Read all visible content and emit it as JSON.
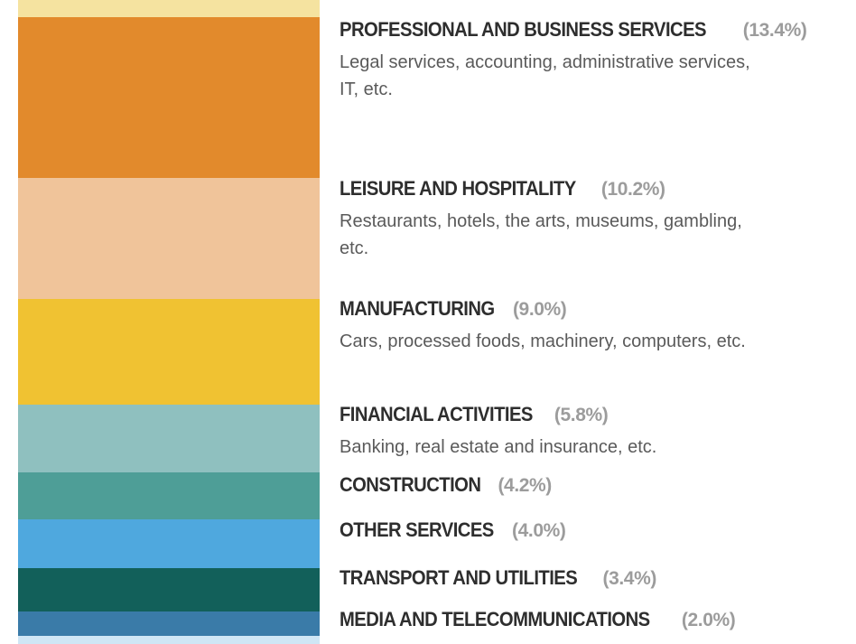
{
  "chart_data": {
    "type": "bar",
    "stacked": true,
    "orientation": "vertical",
    "unit": "%",
    "segments": [
      {
        "label": "",
        "description": "",
        "value": null,
        "color": "#f5e3a0"
      },
      {
        "label": "PROFESSIONAL AND BUSINESS SERVICES",
        "value_text": "(13.4%)",
        "value": 13.4,
        "description": "Legal services, accounting, administrative services, IT, etc.",
        "color": "#e28a2c"
      },
      {
        "label": "LEISURE AND HOSPITALITY",
        "value_text": "(10.2%)",
        "value": 10.2,
        "description": "Restaurants, hotels, the arts, museums, gambling, etc.",
        "color": "#f0c49a"
      },
      {
        "label": "MANUFACTURING",
        "value_text": "(9.0%)",
        "value": 9.0,
        "description": "Cars, processed foods, machinery, computers, etc.",
        "color": "#f0c232"
      },
      {
        "label": "FINANCIAL ACTIVITIES",
        "value_text": "(5.8%)",
        "value": 5.8,
        "description": "Banking, real estate and insurance, etc.",
        "color": "#8fc0bf"
      },
      {
        "label": "CONSTRUCTION",
        "value_text": "(4.2%)",
        "value": 4.2,
        "description": "",
        "color": "#4e9e97"
      },
      {
        "label": "OTHER SERVICES",
        "value_text": "(4.0%)",
        "value": 4.0,
        "description": "",
        "color": "#4fa8de"
      },
      {
        "label": "TRANSPORT AND UTILITIES",
        "value_text": "(3.4%)",
        "value": 3.4,
        "description": "",
        "color": "#12605a"
      },
      {
        "label": "MEDIA AND TELECOMMUNICATIONS",
        "value_text": "(2.0%)",
        "value": 2.0,
        "description": "",
        "color": "#3a7ba8"
      },
      {
        "label": "",
        "description": "",
        "value": null,
        "color": "#cfe6f5"
      }
    ]
  }
}
